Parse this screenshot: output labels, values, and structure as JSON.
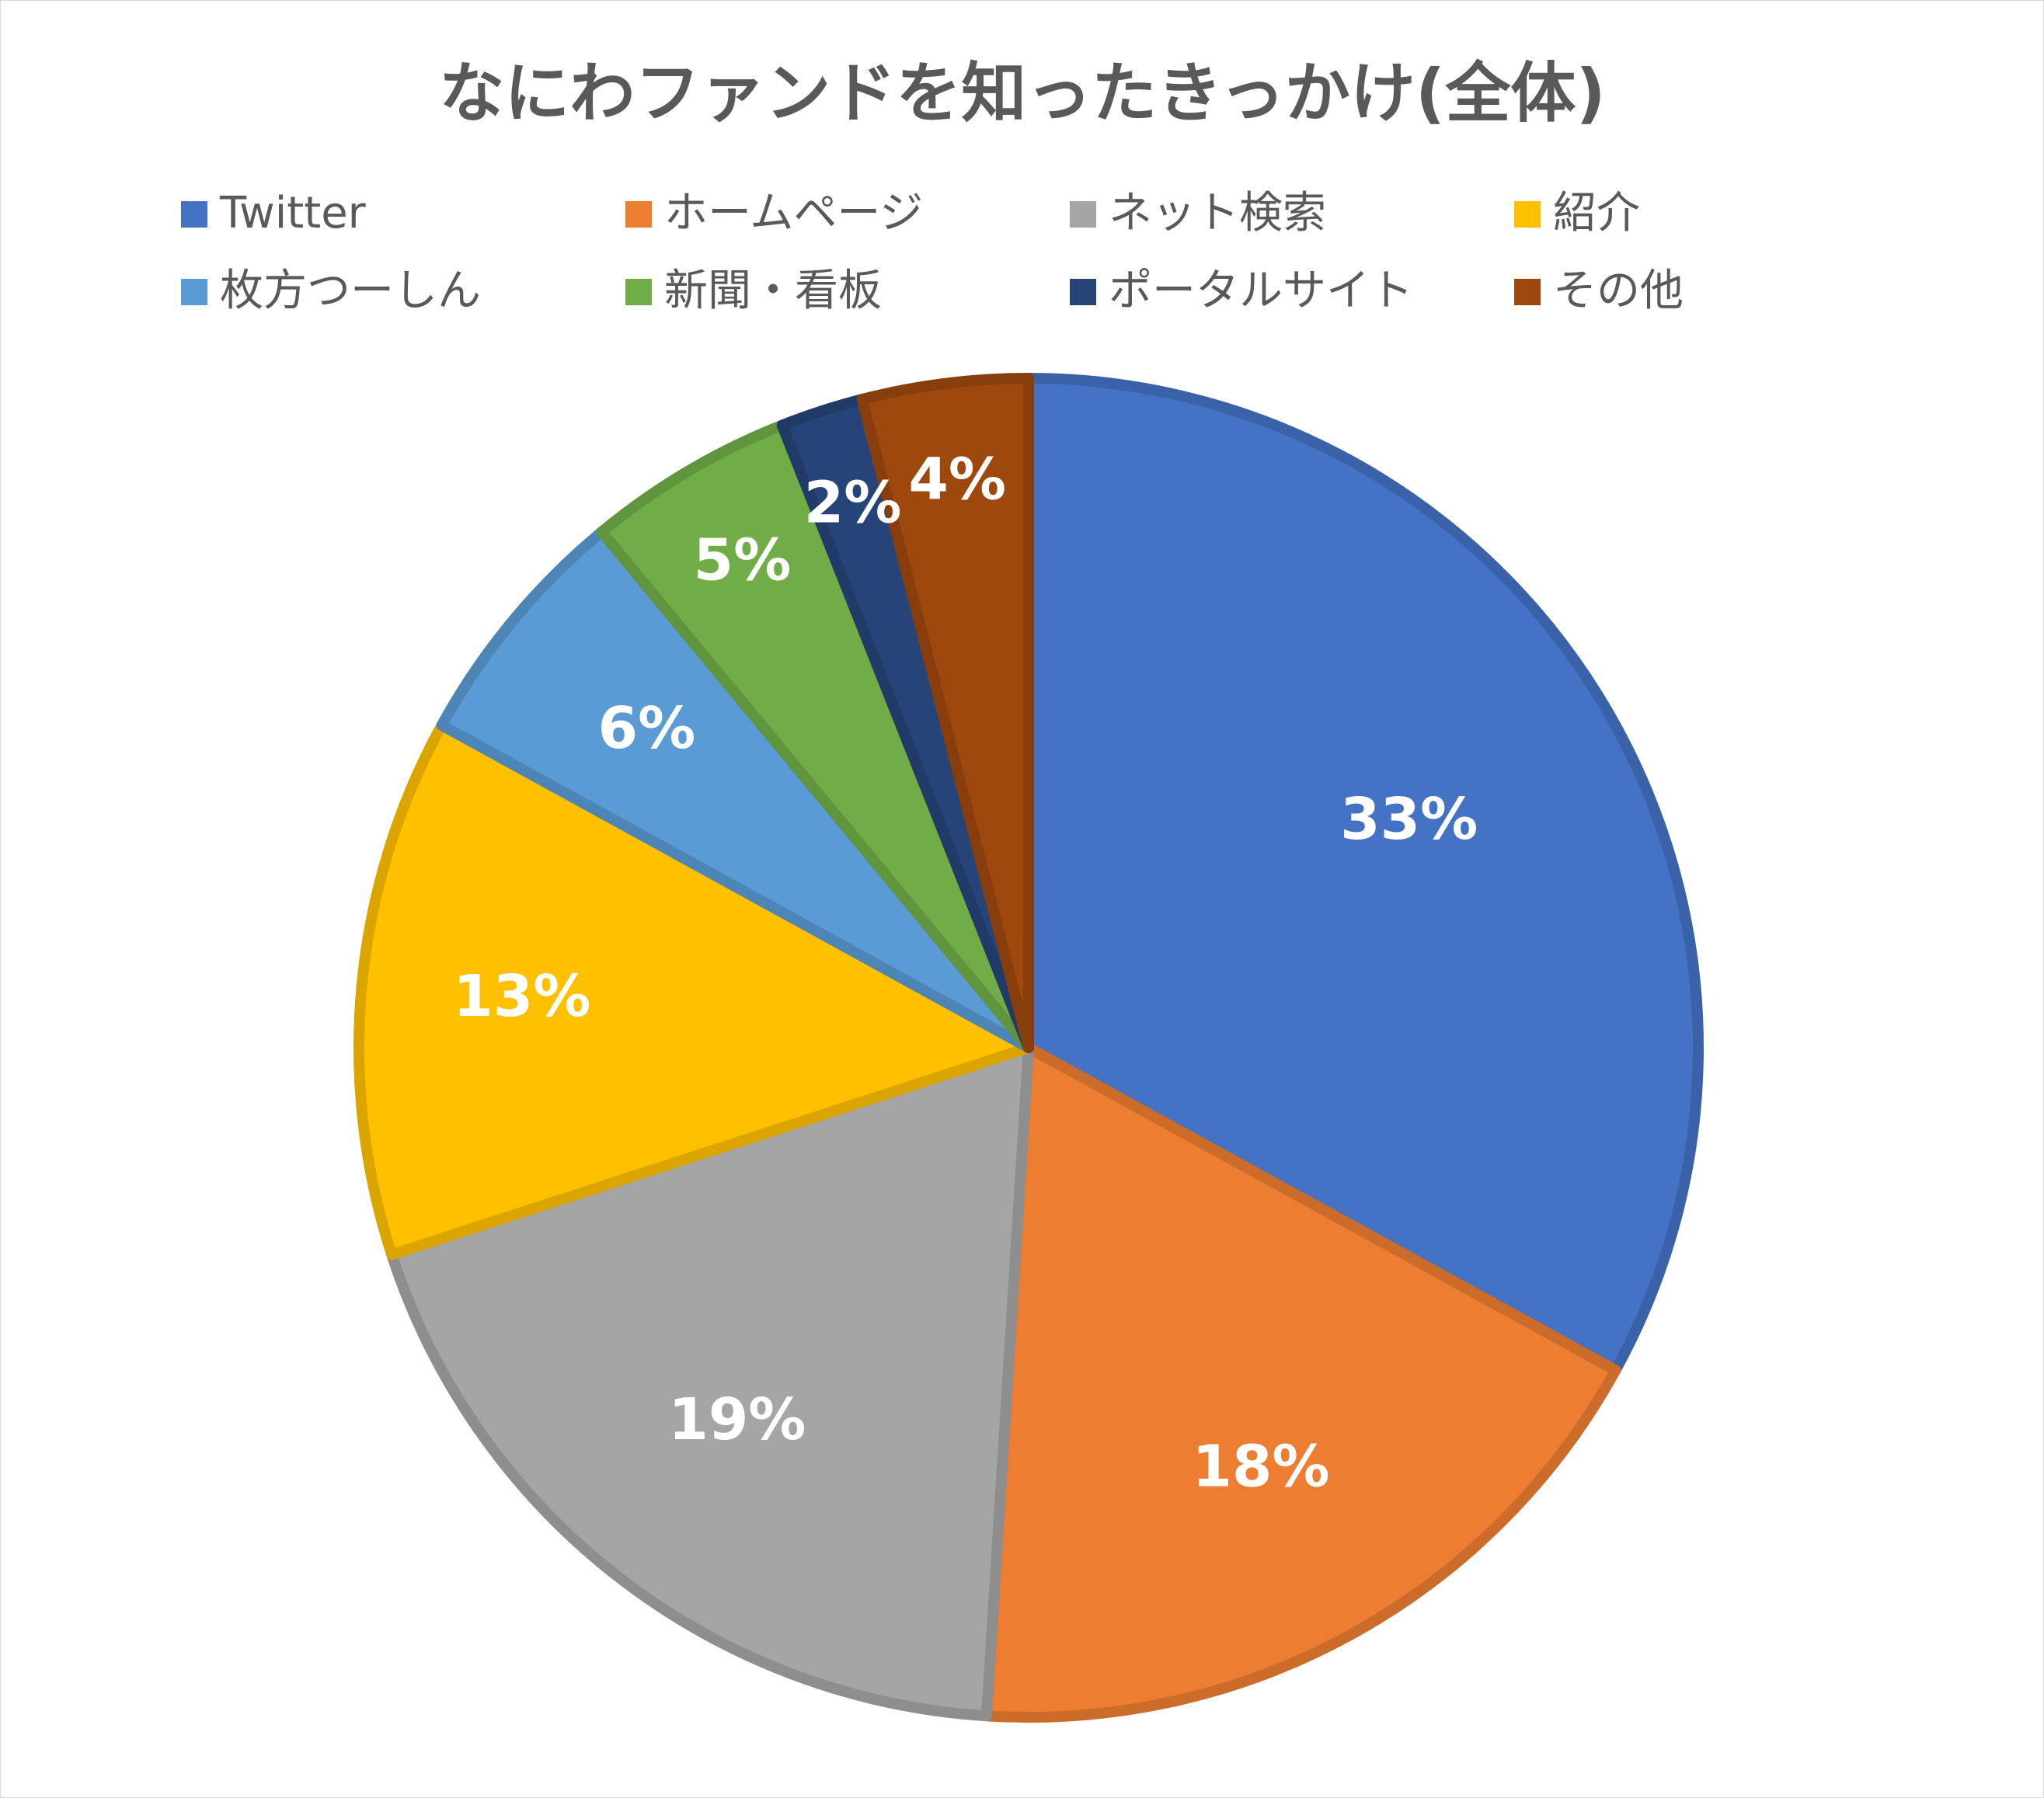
{
  "chart_data": {
    "type": "pie",
    "title": "なにわファンドを知ったきっかけ(全体)",
    "categories": [
      "Twitter",
      "ホームページ",
      "ネット検索",
      "紹介",
      "枚方つーしん",
      "新聞・看板",
      "ポータルサイト",
      "その他"
    ],
    "values": [
      33,
      18,
      19,
      13,
      6,
      5,
      2,
      4
    ],
    "labels": [
      "33%",
      "18%",
      "19%",
      "13%",
      "6%",
      "5%",
      "2%",
      "4%"
    ],
    "colors": [
      "#4472C4",
      "#ED7D31",
      "#A5A5A5",
      "#FFC000",
      "#5B9BD5",
      "#70AD47",
      "#264478",
      "#9E480E"
    ],
    "start_angle": "top (12 o'clock)",
    "direction": "clockwise",
    "legend_position": "top",
    "units": "%"
  }
}
